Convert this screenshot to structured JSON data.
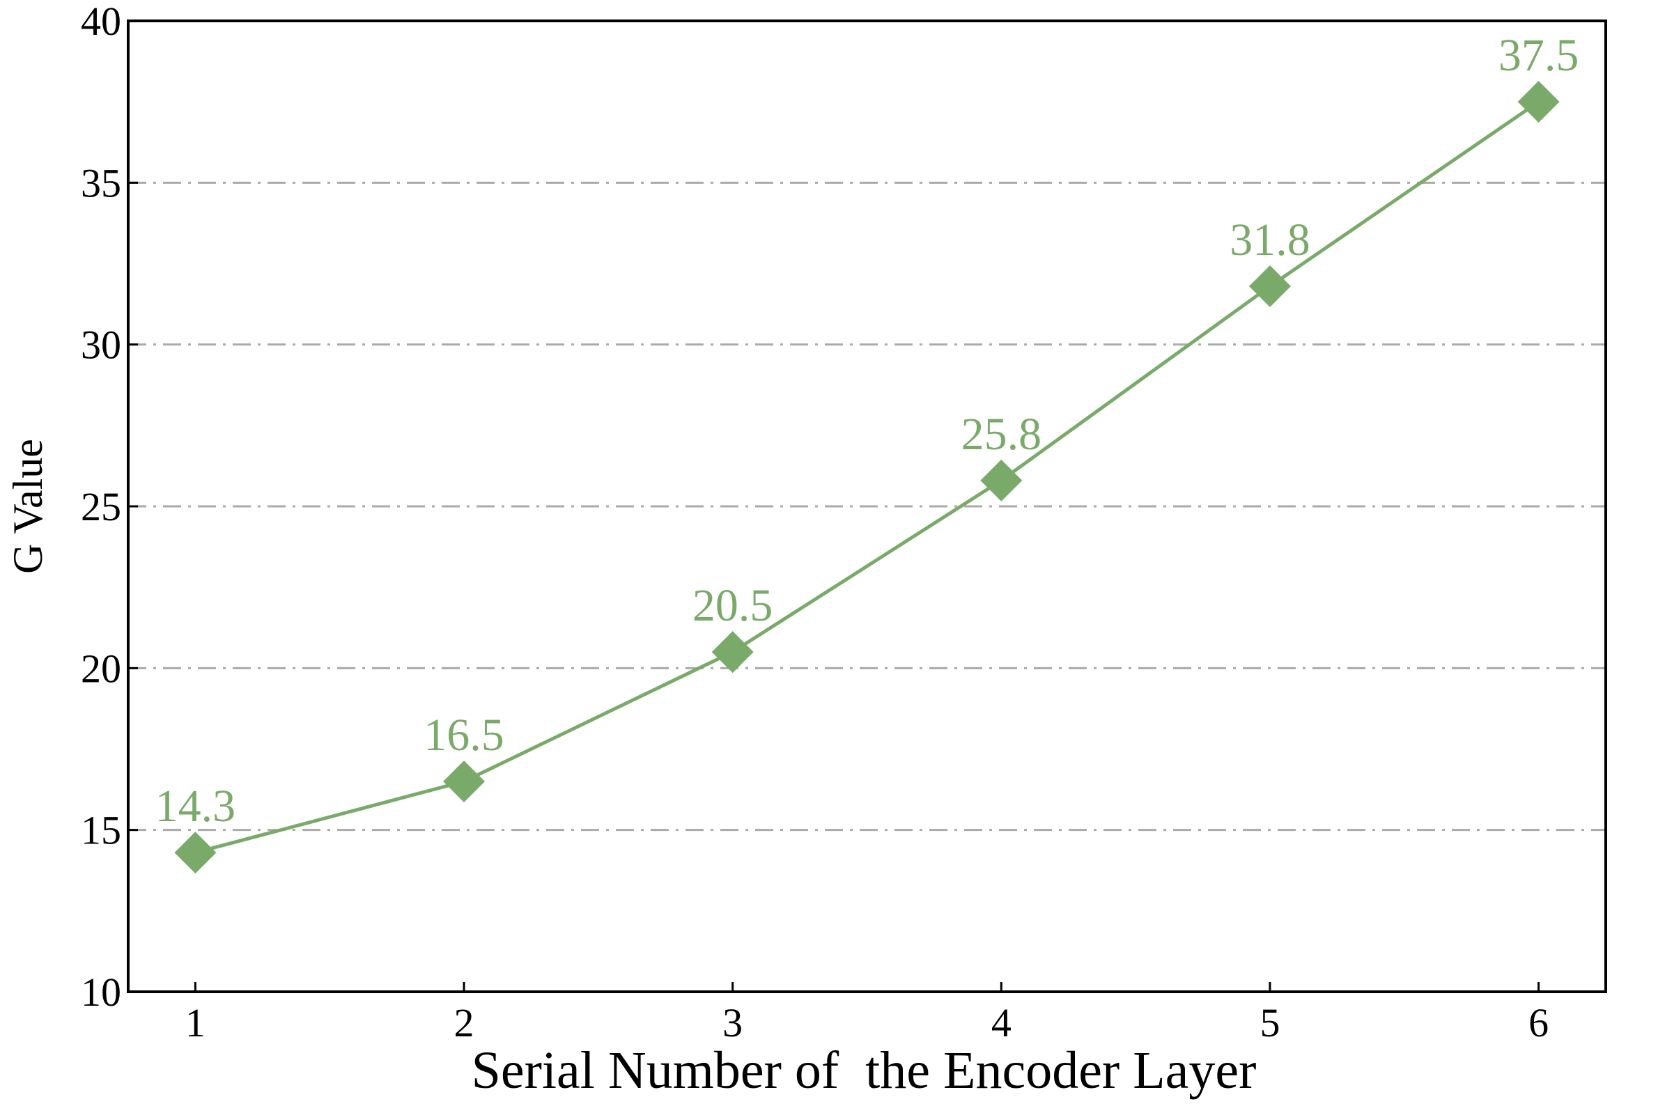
{
  "chart_data": {
    "type": "line",
    "x_label": "Serial Number of  the Encoder Layer",
    "y_label": "G Value",
    "x": [
      1,
      2,
      3,
      4,
      5,
      6
    ],
    "values": [
      14.3,
      16.5,
      20.5,
      25.8,
      31.8,
      37.5
    ],
    "color": "#7aaa6a",
    "marker": "diamond",
    "xlim": [
      0.75,
      6.25
    ],
    "xticks": [
      1,
      2,
      3,
      4,
      5,
      6
    ],
    "ylim": [
      10,
      40
    ],
    "yticks": [
      10,
      15,
      20,
      25,
      30,
      35,
      40
    ],
    "grid": true
  }
}
